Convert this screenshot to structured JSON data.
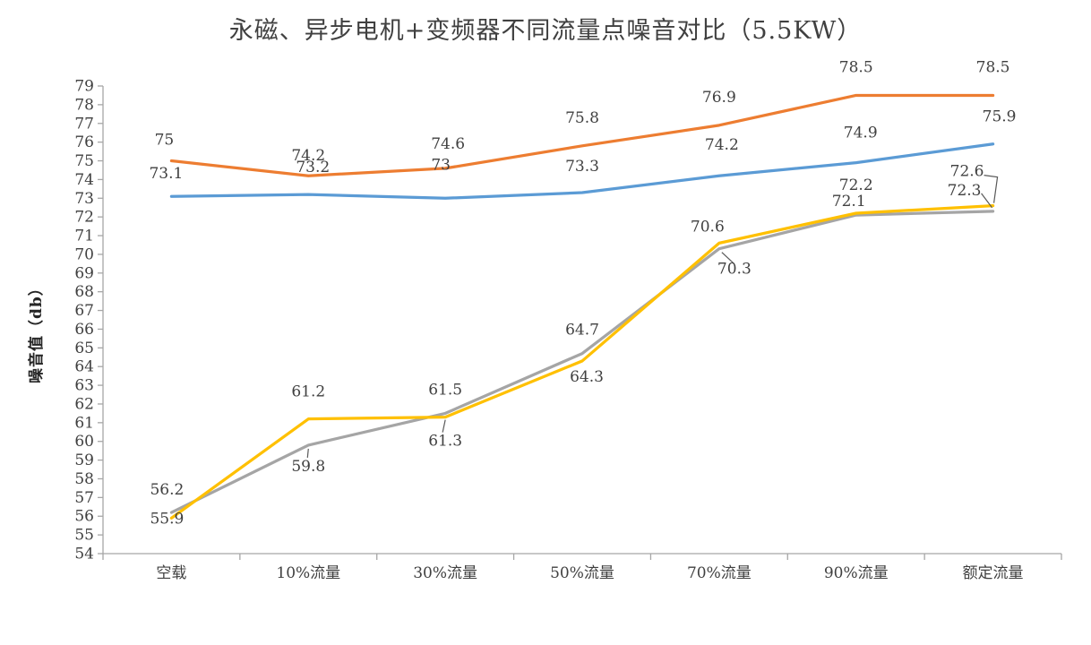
{
  "title": "永磁、异步电机+变频器不同流量点噪音对比（5.5KW）",
  "chart_data": {
    "type": "line",
    "title": "永磁、异步电机+变频器不同流量点噪音对比（5.5KW）",
    "categories": [
      "空载",
      "10%流量",
      "30%流量",
      "50%流量",
      "70%流量",
      "90%流量",
      "额定流量"
    ],
    "series": [
      {
        "name": "blue",
        "color": "#5B9BD5",
        "values": [
          73.1,
          73.2,
          73,
          73.3,
          74.2,
          74.9,
          75.9
        ]
      },
      {
        "name": "orange",
        "color": "#ED7D31",
        "values": [
          75,
          74.2,
          74.6,
          75.8,
          76.9,
          78.5,
          78.5
        ]
      },
      {
        "name": "gray",
        "color": "#A5A5A5",
        "values": [
          56.2,
          59.8,
          61.5,
          64.7,
          70.3,
          72.1,
          72.3
        ]
      },
      {
        "name": "yellow",
        "color": "#FFC000",
        "values": [
          55.9,
          61.2,
          61.3,
          64.3,
          70.6,
          72.2,
          72.6
        ]
      }
    ],
    "xlabel": "",
    "ylabel": "噪音值（db）",
    "ylim": [
      54,
      79
    ],
    "ytick_step": 1,
    "grid": false,
    "legend": "none",
    "data_labels": true,
    "colors": {
      "axis": "#A6A6A6",
      "text": "#404040",
      "leader": "#595959"
    }
  }
}
